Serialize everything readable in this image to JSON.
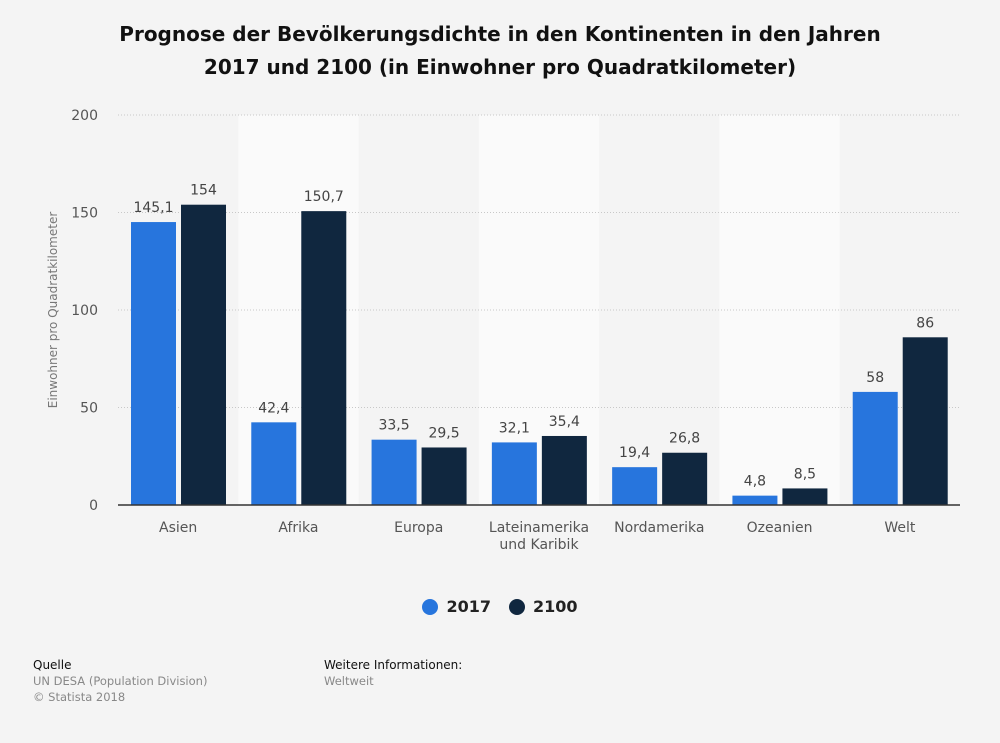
{
  "chart_data": {
    "type": "bar",
    "title": "Prognose der Bevölkerungsdichte in den Kontinenten in den Jahren 2017 und 2100 (in Einwohner pro Quadratkilometer)",
    "title_lines": [
      "Prognose der Bevölkerungsdichte in den Kontinenten in den Jahren",
      "2017 und 2100 (in Einwohner pro Quadratkilometer)"
    ],
    "categories": [
      "Asien",
      "Afrika",
      "Europa",
      "Lateinamerika und Karibik",
      "Nordamerika",
      "Ozeanien",
      "Welt"
    ],
    "category_lines": [
      [
        "Asien"
      ],
      [
        "Afrika"
      ],
      [
        "Europa"
      ],
      [
        "Lateinamerika",
        "und Karibik"
      ],
      [
        "Nordamerika"
      ],
      [
        "Ozeanien"
      ],
      [
        "Welt"
      ]
    ],
    "series": [
      {
        "name": "2017",
        "color": "#2775dd",
        "values": [
          145.1,
          42.4,
          33.5,
          32.1,
          19.4,
          4.8,
          58
        ],
        "labels": [
          "145,1",
          "42,4",
          "33,5",
          "32,1",
          "19,4",
          "4,8",
          "58"
        ]
      },
      {
        "name": "2100",
        "color": "#10273f",
        "values": [
          154,
          150.7,
          29.5,
          35.4,
          26.8,
          8.5,
          86
        ],
        "labels": [
          "154",
          "150,7",
          "29,5",
          "35,4",
          "26,8",
          "8,5",
          "86"
        ]
      }
    ],
    "xlabel": "",
    "ylabel": "Einwohner pro Quadratkilometer",
    "ylim": [
      0,
      200
    ],
    "yticks": [
      0,
      50,
      100,
      150,
      200
    ],
    "grid": true,
    "legend_position": "bottom-center"
  },
  "footer": {
    "source_heading": "Quelle",
    "source_lines": [
      "UN DESA (Population Division)",
      "© Statista 2018"
    ],
    "info_heading": "Weitere Informationen:",
    "info_lines": [
      "Weltweit"
    ]
  }
}
